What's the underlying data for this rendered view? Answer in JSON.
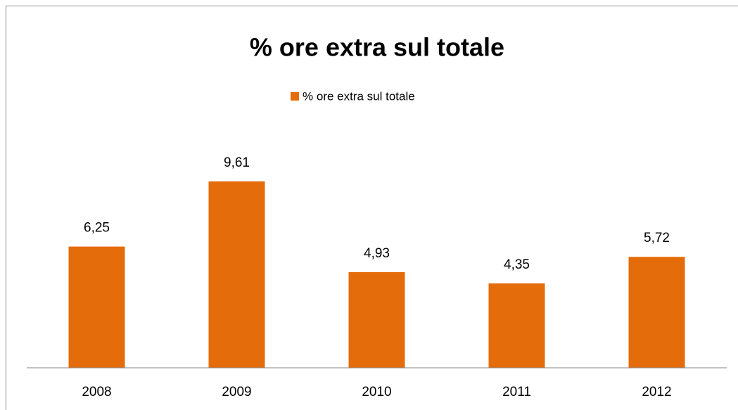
{
  "chart_data": {
    "type": "bar",
    "title": "% ore extra sul totale",
    "categories": [
      "2008",
      "2009",
      "2010",
      "2011",
      "2012"
    ],
    "series": [
      {
        "name": "% ore extra sul totale",
        "color": "#e46c0a",
        "values": [
          6.25,
          9.61,
          4.93,
          4.35,
          5.72
        ],
        "value_labels": [
          "6,25",
          "9,61",
          "4,93",
          "4,35",
          "5,72"
        ]
      }
    ],
    "ylim": [
      0,
      12
    ],
    "legend": "top"
  }
}
